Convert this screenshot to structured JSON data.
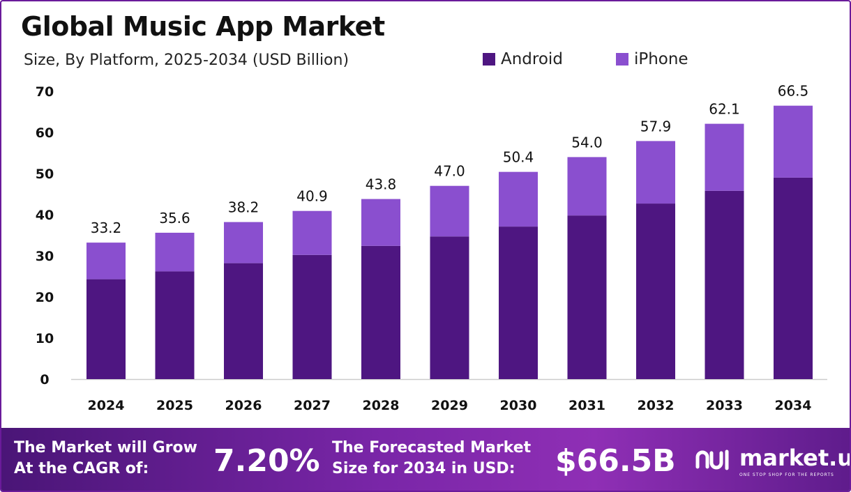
{
  "header": {
    "title": "Global Music App Market",
    "subtitle": "Size, By Platform, 2025-2034 (USD Billion)"
  },
  "chart_data": {
    "type": "bar",
    "stacked": true,
    "categories": [
      "2024",
      "2025",
      "2026",
      "2027",
      "2028",
      "2029",
      "2030",
      "2031",
      "2032",
      "2033",
      "2034"
    ],
    "series": [
      {
        "name": "Android",
        "color": "#4e1681",
        "values": [
          24.3,
          26.2,
          28.2,
          30.2,
          32.4,
          34.7,
          37.1,
          39.8,
          42.7,
          45.8,
          49.0
        ]
      },
      {
        "name": "iPhone",
        "color": "#8a4fcf",
        "values": [
          8.9,
          9.4,
          10.0,
          10.7,
          11.4,
          12.3,
          13.3,
          14.2,
          15.2,
          16.3,
          17.5
        ]
      }
    ],
    "totals": [
      "33.2",
      "35.6",
      "38.2",
      "40.9",
      "43.8",
      "47.0",
      "50.4",
      "54.0",
      "57.9",
      "62.1",
      "66.5"
    ],
    "y_ticks": [
      "0",
      "10",
      "20",
      "30",
      "40",
      "50",
      "60",
      "70"
    ],
    "ylim": [
      0,
      70
    ],
    "grid": false,
    "legend": "top-right"
  },
  "footer": {
    "cagr_label_line1": "The Market will Grow",
    "cagr_label_line2": "At the CAGR of:",
    "cagr_value": "7.20%",
    "forecast_label_line1": "The Forecasted Market",
    "forecast_label_line2": "Size for 2034 in USD:",
    "forecast_value": "$66.5B",
    "brand": "market.us",
    "brand_tagline": "ONE STOP SHOP FOR THE REPORTS",
    "gradient_colors": [
      "#4a1577",
      "#8f2fb5"
    ]
  }
}
